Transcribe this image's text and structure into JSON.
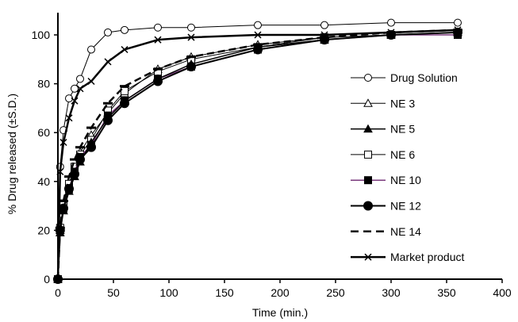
{
  "chart_data": {
    "type": "line",
    "xlabel": "Time (min.)",
    "ylabel": "% Drug released (±S.D.)",
    "xlim": [
      0,
      400
    ],
    "ylim": [
      0,
      110
    ],
    "xticks": [
      0,
      50,
      100,
      150,
      200,
      250,
      300,
      350,
      400
    ],
    "yticks": [
      0,
      20,
      40,
      60,
      80,
      100
    ],
    "grid": false,
    "legend_position": "right",
    "x": [
      0,
      2,
      5,
      10,
      15,
      20,
      30,
      45,
      60,
      90,
      120,
      180,
      240,
      300,
      360
    ],
    "series": [
      {
        "name": "Drug Solution",
        "marker": "open-circle",
        "color": "#000000",
        "line_width": 1,
        "values": [
          0,
          46,
          61,
          74,
          78,
          82,
          94,
          101,
          102,
          103,
          103,
          104,
          104,
          105,
          105
        ]
      },
      {
        "name": "NE 3",
        "marker": "open-triangle",
        "color": "#000000",
        "line_width": 1,
        "values": [
          0,
          20,
          30,
          38,
          45,
          52,
          59,
          68,
          76,
          86,
          91,
          96,
          99,
          100,
          101
        ]
      },
      {
        "name": "NE 5",
        "marker": "filled-triangle",
        "color": "#000000",
        "line_width": 1.5,
        "values": [
          0,
          19,
          28,
          36,
          42,
          48,
          56,
          66,
          73,
          82,
          88,
          95,
          98,
          100,
          101
        ]
      },
      {
        "name": "NE 6",
        "marker": "open-square",
        "color": "#000000",
        "line_width": 1,
        "values": [
          0,
          21,
          31,
          39,
          46,
          51,
          57,
          69,
          77,
          85,
          90,
          95,
          99,
          100,
          101
        ]
      },
      {
        "name": "NE 10",
        "marker": "filled-square",
        "color": "#7a3a7c",
        "line_width": 1.5,
        "values": [
          0,
          20,
          29,
          37,
          44,
          50,
          55,
          67,
          73,
          82,
          87,
          94,
          98,
          100,
          100
        ]
      },
      {
        "name": "NE 12",
        "marker": "filled-circle",
        "color": "#000000",
        "line_width": 2,
        "values": [
          0,
          20,
          29,
          37,
          43,
          49,
          54,
          65,
          72,
          81,
          87,
          94,
          98,
          100,
          101
        ]
      },
      {
        "name": "NE 14",
        "marker": "dash",
        "color": "#000000",
        "line_width": 2.5,
        "dashed": true,
        "values": [
          0,
          21,
          32,
          42,
          49,
          54,
          62,
          72,
          79,
          86,
          91,
          96,
          99,
          101,
          102
        ]
      },
      {
        "name": "Market product",
        "marker": "cross",
        "color": "#000000",
        "line_width": 2.5,
        "values": [
          0,
          44,
          56,
          66,
          73,
          78,
          81,
          89,
          94,
          98,
          99,
          100,
          100,
          101,
          102
        ]
      }
    ]
  }
}
